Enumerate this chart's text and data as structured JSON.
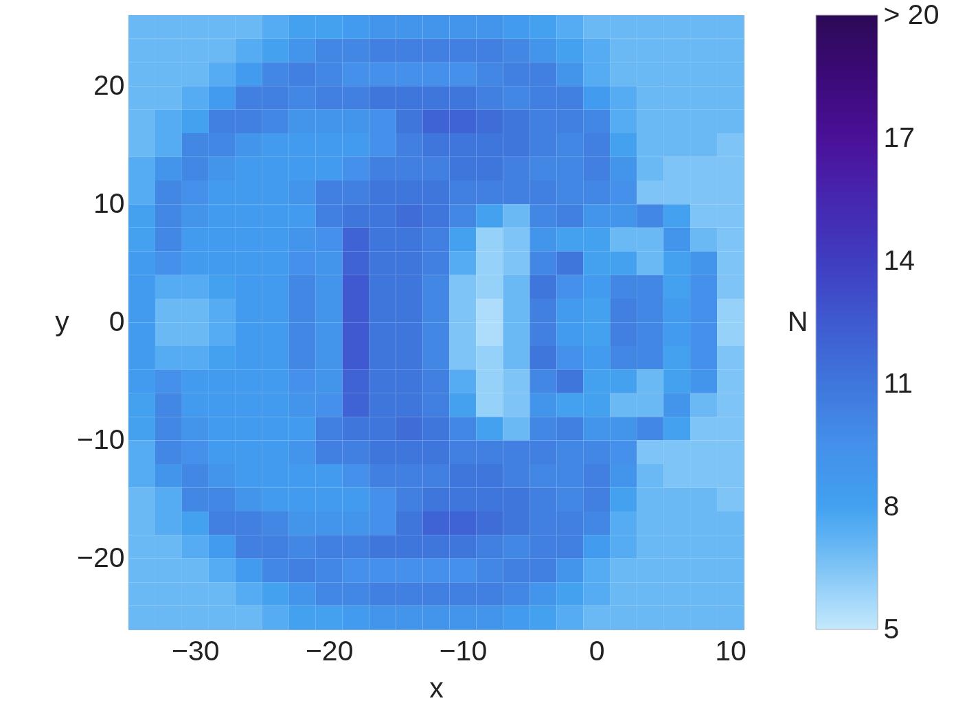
{
  "chart_data": {
    "type": "heatmap",
    "xlabel": "x",
    "ylabel": "y",
    "clabel": "N",
    "x": [
      -34,
      -32,
      -30,
      -28,
      -26,
      -24,
      -22,
      -20,
      -18,
      -16,
      -14,
      -12,
      -10,
      -8,
      -6,
      -4,
      -2,
      0,
      2,
      4,
      6,
      8,
      10
    ],
    "xlim": [
      -35,
      11
    ],
    "ylim": [
      -26,
      26
    ],
    "xticks": [
      -30,
      -20,
      -10,
      0,
      10
    ],
    "yticks": [
      -20,
      -10,
      0,
      10,
      20
    ],
    "clim": [
      5,
      20
    ],
    "cticks": [
      5,
      8,
      11,
      14,
      17,
      {
        "value": 20,
        "label": "> 20"
      }
    ],
    "cells": [
      [
        7,
        7,
        7,
        7,
        7,
        7.5,
        8,
        8,
        8.5,
        9,
        9,
        9,
        9,
        9,
        8.5,
        8,
        7.5,
        7,
        7,
        7,
        7,
        7,
        7
      ],
      [
        7,
        7,
        7,
        7,
        7.5,
        8,
        9,
        10,
        10,
        10.5,
        10.5,
        10.5,
        10.5,
        10.5,
        10,
        9,
        8,
        7.5,
        7,
        7,
        7,
        7,
        7
      ],
      [
        7,
        7,
        7,
        7.5,
        8.5,
        10,
        10.5,
        10,
        9.5,
        9.5,
        9.5,
        9.5,
        9.5,
        10,
        10.5,
        10.5,
        9,
        7.5,
        7,
        7,
        7,
        7,
        7
      ],
      [
        7,
        7,
        7.5,
        8.5,
        10.5,
        10.5,
        10,
        10.5,
        10.5,
        11,
        11,
        11,
        11,
        10.5,
        10,
        10.5,
        10.5,
        8.5,
        7.5,
        7,
        7,
        7,
        7
      ],
      [
        7,
        7.5,
        8,
        10.5,
        10.5,
        10,
        9,
        9,
        9,
        9.5,
        11,
        12,
        12,
        11.5,
        11,
        10.5,
        10.5,
        10,
        7.5,
        7,
        7,
        7,
        7
      ],
      [
        7,
        7.5,
        10,
        10,
        9,
        8.5,
        8.5,
        8.5,
        8.5,
        9.5,
        10.5,
        11,
        11,
        11,
        11,
        10.5,
        10,
        10.5,
        8,
        7,
        7,
        7,
        6.5
      ],
      [
        7.5,
        9,
        10,
        9,
        8.5,
        8.5,
        8.5,
        8.5,
        9.5,
        10.5,
        10.5,
        10.5,
        11,
        11,
        10.5,
        10,
        10,
        10.5,
        9,
        7,
        6.5,
        6.5,
        6.5
      ],
      [
        7.5,
        10,
        9.5,
        8.5,
        8.5,
        8.5,
        9,
        10.5,
        10.5,
        11,
        11,
        11,
        10.5,
        10.5,
        10.5,
        10.5,
        10,
        10,
        9.5,
        6.5,
        6.5,
        6.5,
        6.5
      ],
      [
        8,
        10,
        9,
        8.5,
        8.5,
        8.5,
        8.5,
        10.5,
        11,
        11,
        11.5,
        11,
        10,
        8,
        7,
        10,
        10.5,
        9,
        9,
        10,
        8,
        6.5,
        6.5
      ],
      [
        8,
        10,
        8.5,
        8.5,
        8.5,
        8.5,
        9,
        9.5,
        12,
        11,
        11,
        10.5,
        8,
        6,
        6.5,
        9,
        8,
        8,
        7,
        7,
        9,
        7,
        6.5
      ],
      [
        8.5,
        9.5,
        8.5,
        8.5,
        8.5,
        8.5,
        9.5,
        9,
        12,
        11,
        11,
        10.5,
        7.5,
        6,
        6.5,
        10,
        11,
        8,
        8,
        7,
        8,
        9,
        6.5
      ],
      [
        8.5,
        7.5,
        7.5,
        8,
        8.5,
        8.5,
        10,
        9,
        12.5,
        11,
        11,
        10,
        6.5,
        6,
        7,
        11,
        9.5,
        8.5,
        10,
        10,
        8,
        9.5,
        6.5
      ],
      [
        8.5,
        7,
        7,
        7.5,
        8.5,
        8.5,
        10,
        9,
        12.5,
        11,
        11,
        10,
        6.5,
        5.5,
        7,
        10.5,
        8.5,
        8,
        10.5,
        10,
        8.5,
        9.5,
        6
      ],
      [
        8.5,
        7,
        7,
        7.5,
        8.5,
        8.5,
        10,
        9,
        12.5,
        11,
        11,
        10,
        6.5,
        5.5,
        7,
        10.5,
        8.5,
        8,
        10.5,
        10,
        8.5,
        9.5,
        6
      ],
      [
        8.5,
        7.5,
        7.5,
        8,
        8.5,
        8.5,
        10,
        9,
        12.5,
        11,
        11,
        10,
        6.5,
        6,
        7,
        11,
        9.5,
        8.5,
        10,
        10,
        8,
        9.5,
        6.5
      ],
      [
        8.5,
        9.5,
        8.5,
        8.5,
        8.5,
        8.5,
        9.5,
        9,
        12,
        11,
        11,
        10.5,
        7.5,
        6,
        6.5,
        10,
        11,
        8,
        8,
        7,
        8,
        9,
        6.5
      ],
      [
        8,
        10,
        8.5,
        8.5,
        8.5,
        8.5,
        9,
        9.5,
        12,
        11,
        11,
        10.5,
        8,
        6,
        6.5,
        9,
        8,
        8,
        7,
        7,
        9,
        7,
        6.5
      ],
      [
        8,
        10,
        9,
        8.5,
        8.5,
        8.5,
        8.5,
        10.5,
        11,
        11,
        11.5,
        11,
        10,
        8,
        7,
        10,
        10.5,
        9,
        9,
        10,
        8,
        6.5,
        6.5
      ],
      [
        7.5,
        10,
        9.5,
        8.5,
        8.5,
        8.5,
        9,
        10.5,
        10.5,
        11,
        11,
        11,
        10.5,
        10.5,
        10.5,
        10.5,
        10,
        10,
        9.5,
        6.5,
        6.5,
        6.5,
        6.5
      ],
      [
        7.5,
        9,
        10,
        9,
        8.5,
        8.5,
        8.5,
        8.5,
        9.5,
        10.5,
        10.5,
        10.5,
        11,
        11,
        10.5,
        10,
        10,
        10.5,
        9,
        7,
        6.5,
        6.5,
        6.5
      ],
      [
        7,
        7.5,
        10,
        10,
        9,
        8.5,
        8.5,
        8.5,
        8.5,
        9.5,
        10.5,
        11,
        11,
        11,
        11,
        10.5,
        10,
        10.5,
        8,
        7,
        7,
        7,
        6.5
      ],
      [
        7,
        7.5,
        8,
        10.5,
        10.5,
        10,
        9,
        9,
        9,
        9.5,
        11,
        12,
        12,
        11.5,
        11,
        10.5,
        10.5,
        10,
        7.5,
        7,
        7,
        7,
        7
      ],
      [
        7,
        7,
        7.5,
        8.5,
        10.5,
        10.5,
        10,
        10.5,
        10.5,
        11,
        11,
        11,
        11,
        10.5,
        10,
        10.5,
        10.5,
        8.5,
        7.5,
        7,
        7,
        7,
        7
      ],
      [
        7,
        7,
        7,
        7.5,
        8.5,
        10,
        10.5,
        10,
        9.5,
        9.5,
        9.5,
        9.5,
        9.5,
        10,
        10.5,
        10.5,
        9,
        7.5,
        7,
        7,
        7,
        7,
        7
      ],
      [
        7,
        7,
        7,
        7,
        7.5,
        8,
        9,
        10,
        10,
        10.5,
        10.5,
        10.5,
        10.5,
        10.5,
        10,
        9,
        8,
        7.5,
        7,
        7,
        7,
        7,
        7
      ],
      [
        7,
        7,
        7,
        7,
        7,
        7.5,
        8,
        8,
        8.5,
        9,
        9,
        9,
        9,
        9,
        8.5,
        8,
        7.5,
        7,
        7,
        7,
        7,
        7,
        7
      ]
    ]
  }
}
